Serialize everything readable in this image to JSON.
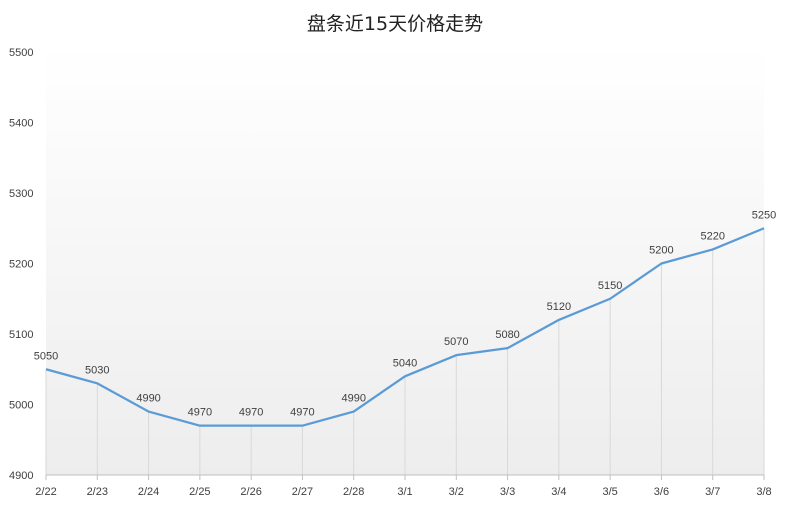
{
  "chart_data": {
    "type": "line",
    "title": "盘条近15天价格走势",
    "xlabel": "",
    "ylabel": "",
    "categories": [
      "2/22",
      "2/23",
      "2/24",
      "2/25",
      "2/26",
      "2/27",
      "2/28",
      "3/1",
      "3/2",
      "3/3",
      "3/4",
      "3/5",
      "3/6",
      "3/7",
      "3/8"
    ],
    "series": [
      {
        "values": [
          5050,
          5030,
          4990,
          4970,
          4970,
          4970,
          4990,
          5040,
          5070,
          5080,
          5120,
          5150,
          5200,
          5220,
          5250
        ]
      }
    ],
    "ylim": [
      4900,
      5500
    ],
    "yticks": [
      4900,
      5000,
      5100,
      5200,
      5300,
      5400,
      5500
    ],
    "data_labels": true,
    "drop_lines": true,
    "grid": false,
    "legend": "none",
    "colors": {
      "line": "#5B9BD5",
      "drop_line": "#d9d9d9",
      "axis": "#bfbfbf",
      "plot_gradient_top": "#ffffff",
      "plot_gradient_bottom": "#ededed"
    }
  }
}
